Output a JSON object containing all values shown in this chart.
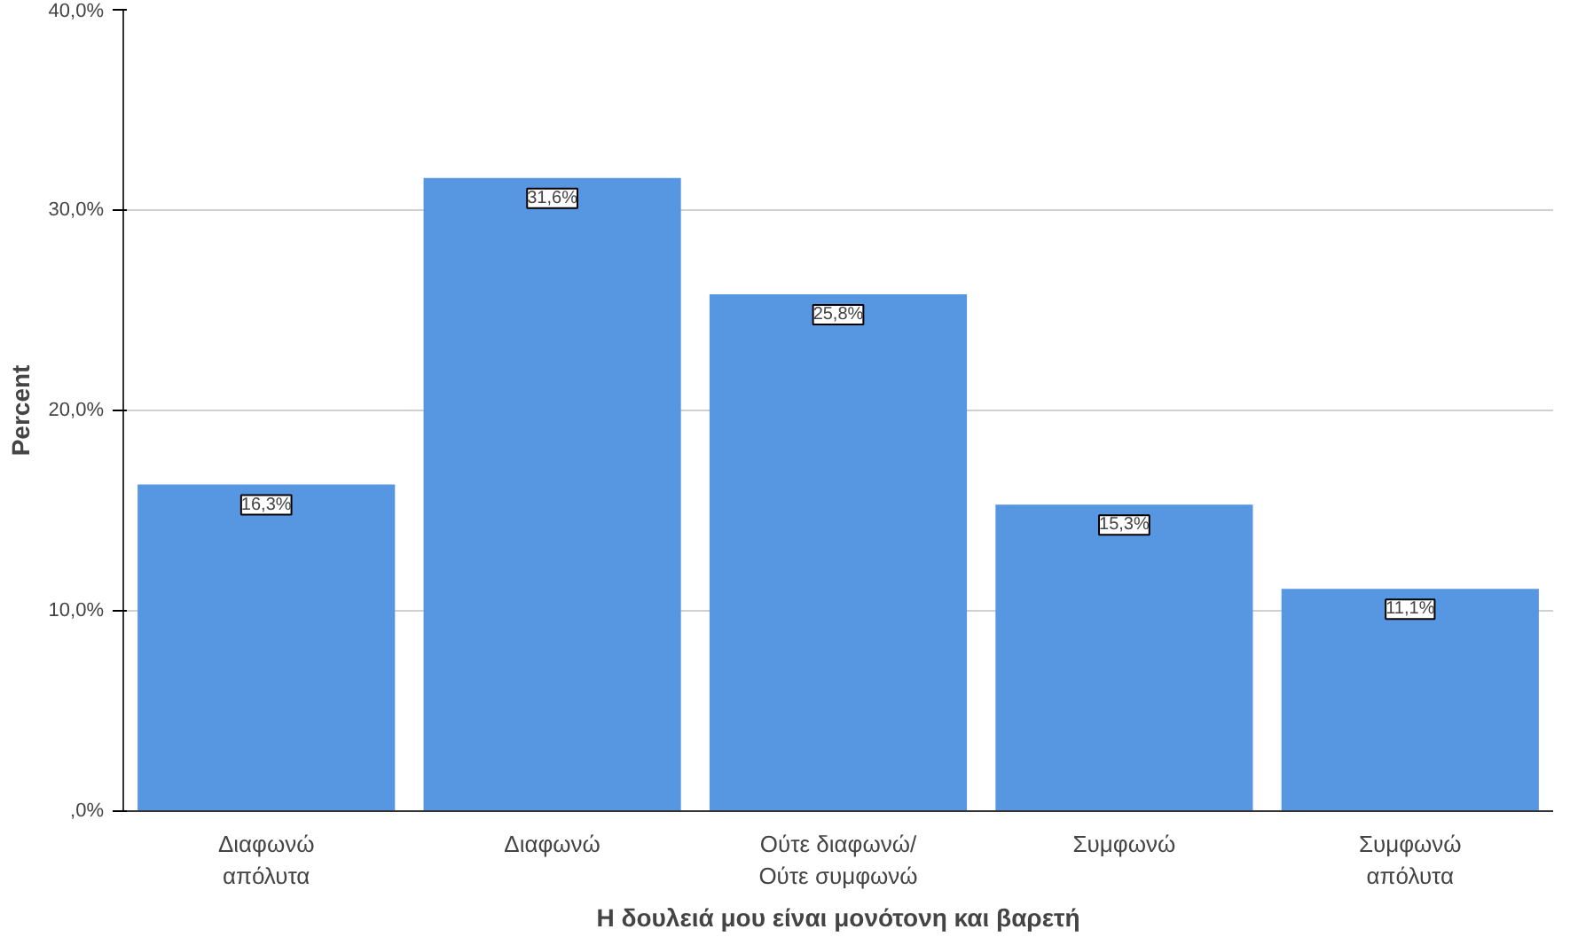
{
  "chart_data": {
    "type": "bar",
    "xlabel": "Η δουλειά μου είναι μονότονη και βαρετή",
    "ylabel": "Percent",
    "categories": [
      "Διαφωνώ\nαπόλυτα",
      "Διαφωνώ",
      "Ούτε διαφωνώ/\nΟύτε συμφωνώ",
      "Συμφωνώ",
      "Συμφωνώ\nαπόλυτα"
    ],
    "values": [
      16.3,
      31.6,
      25.8,
      15.3,
      11.1
    ],
    "value_labels": [
      "16,3%",
      "31,6%",
      "25,8%",
      "15,3%",
      "11,1%"
    ],
    "color": "#5797e2",
    "ylim": [
      0,
      40
    ],
    "yticks": [
      {
        "value": 0,
        "label": ",0%"
      },
      {
        "value": 10,
        "label": "10,0%"
      },
      {
        "value": 20,
        "label": "20,0%"
      },
      {
        "value": 30,
        "label": "30,0%"
      },
      {
        "value": 40,
        "label": "40,0%"
      }
    ],
    "grid": "y"
  }
}
